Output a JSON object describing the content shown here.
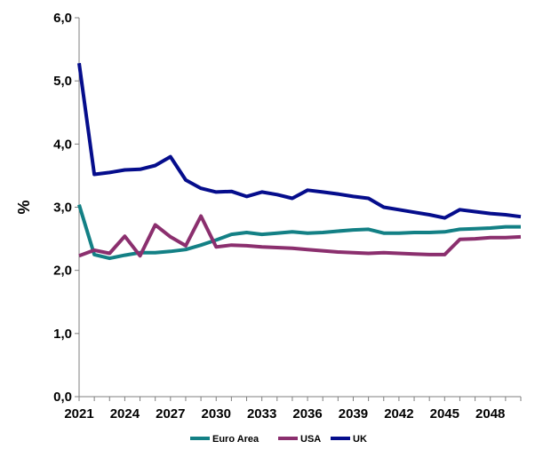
{
  "chart_data": {
    "type": "line",
    "title": "",
    "xlabel": "",
    "ylabel": "%",
    "ylim": [
      0,
      6
    ],
    "yticks": [
      "0,0",
      "1,0",
      "2,0",
      "3,0",
      "4,0",
      "5,0",
      "6,0"
    ],
    "ytick_values": [
      0,
      1,
      2,
      3,
      4,
      5,
      6
    ],
    "xticks": [
      "2021",
      "2024",
      "2027",
      "2030",
      "2033",
      "2036",
      "2039",
      "2042",
      "2045",
      "2048"
    ],
    "xtick_values": [
      2021,
      2024,
      2027,
      2030,
      2033,
      2036,
      2039,
      2042,
      2045,
      2048
    ],
    "x": [
      2021,
      2022,
      2023,
      2024,
      2025,
      2026,
      2027,
      2028,
      2029,
      2030,
      2031,
      2032,
      2033,
      2034,
      2035,
      2036,
      2037,
      2038,
      2039,
      2040,
      2041,
      2042,
      2043,
      2044,
      2045,
      2046,
      2047,
      2048,
      2049,
      2050
    ],
    "xlim": [
      2021,
      2050
    ],
    "grid": false,
    "legend_position": "bottom",
    "series": [
      {
        "name": "Euro Area",
        "color": "#138085",
        "values": [
          3.04,
          2.25,
          2.19,
          2.24,
          2.28,
          2.28,
          2.3,
          2.33,
          2.4,
          2.48,
          2.57,
          2.6,
          2.57,
          2.59,
          2.61,
          2.59,
          2.6,
          2.62,
          2.64,
          2.65,
          2.59,
          2.59,
          2.6,
          2.6,
          2.61,
          2.65,
          2.66,
          2.67,
          2.69,
          2.69
        ]
      },
      {
        "name": "USA",
        "color": "#8B2F6E",
        "values": [
          2.23,
          2.32,
          2.27,
          2.54,
          2.23,
          2.72,
          2.53,
          2.39,
          2.86,
          2.37,
          2.4,
          2.39,
          2.37,
          2.36,
          2.35,
          2.33,
          2.31,
          2.29,
          2.28,
          2.27,
          2.28,
          2.27,
          2.26,
          2.25,
          2.25,
          2.49,
          2.5,
          2.52,
          2.52,
          2.53
        ]
      },
      {
        "name": "UK",
        "color": "#050D8C",
        "values": [
          5.28,
          3.52,
          3.55,
          3.59,
          3.6,
          3.66,
          3.8,
          3.43,
          3.3,
          3.24,
          3.25,
          3.17,
          3.24,
          3.2,
          3.14,
          3.27,
          3.24,
          3.21,
          3.17,
          3.14,
          3.0,
          2.96,
          2.92,
          2.88,
          2.83,
          2.96,
          2.93,
          2.9,
          2.88,
          2.85
        ]
      }
    ]
  }
}
